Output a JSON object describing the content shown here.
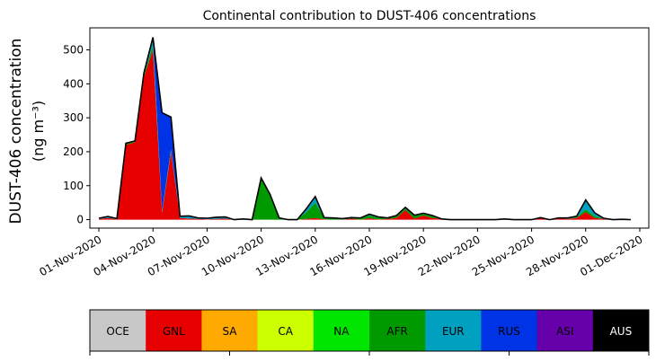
{
  "chart_data": {
    "type": "area",
    "title": "Continental contribution to DUST-406 concentrations",
    "ylabel_line1": "DUST-406 concentration",
    "ylabel_line2": "(ng m⁻³)",
    "ylim": [
      -25,
      565
    ],
    "yticks": [
      0,
      100,
      200,
      300,
      400,
      500
    ],
    "xlim": [
      -0.5,
      30.5
    ],
    "xticks": [
      {
        "day": 0,
        "label": "01-Nov-2020"
      },
      {
        "day": 3,
        "label": "04-Nov-2020"
      },
      {
        "day": 6,
        "label": "07-Nov-2020"
      },
      {
        "day": 9,
        "label": "10-Nov-2020"
      },
      {
        "day": 12,
        "label": "13-Nov-2020"
      },
      {
        "day": 15,
        "label": "16-Nov-2020"
      },
      {
        "day": 18,
        "label": "19-Nov-2020"
      },
      {
        "day": 21,
        "label": "22-Nov-2020"
      },
      {
        "day": 24,
        "label": "25-Nov-2020"
      },
      {
        "day": 27,
        "label": "28-Nov-2020"
      },
      {
        "day": 30,
        "label": "01-Dec-2020"
      }
    ],
    "x": [
      0,
      0.5,
      1,
      1.5,
      2,
      2.5,
      3,
      3.5,
      4,
      4.5,
      5,
      5.5,
      6,
      6.5,
      7,
      7.5,
      8,
      8.5,
      9,
      9.5,
      10,
      10.5,
      11,
      11.5,
      12,
      12.5,
      13,
      13.5,
      14,
      14.5,
      15,
      15.5,
      16,
      16.5,
      17,
      17.5,
      18,
      18.5,
      19,
      19.5,
      20,
      20.5,
      21,
      21.5,
      22,
      22.5,
      23,
      23.5,
      24,
      24.5,
      25,
      25.5,
      26,
      26.5,
      27,
      27.5,
      28,
      28.5,
      29,
      29.5
    ],
    "series": [
      {
        "name": "GNL",
        "color": "#e60000",
        "values": [
          2,
          5,
          1,
          220,
          228,
          420,
          500,
          20,
          200,
          5,
          3,
          2,
          1,
          2,
          3,
          0,
          0,
          0,
          0,
          0,
          0,
          0,
          0,
          2,
          5,
          1,
          0,
          0,
          3,
          0,
          4,
          1,
          2,
          5,
          28,
          3,
          12,
          5,
          2,
          0,
          0,
          0,
          0,
          0,
          0,
          0,
          0,
          0,
          0,
          4,
          0,
          3,
          2,
          5,
          22,
          5,
          2,
          0,
          1,
          0
        ]
      },
      {
        "name": "AFR",
        "color": "#009a00",
        "values": [
          0,
          0,
          0,
          5,
          4,
          8,
          12,
          2,
          5,
          0,
          0,
          0,
          0,
          0,
          0,
          0,
          0,
          0,
          120,
          70,
          5,
          0,
          0,
          20,
          45,
          5,
          5,
          3,
          3,
          5,
          8,
          5,
          2,
          5,
          5,
          8,
          5,
          5,
          0,
          0,
          0,
          0,
          0,
          0,
          0,
          0,
          0,
          0,
          0,
          0,
          0,
          0,
          0,
          2,
          8,
          5,
          0,
          0,
          0,
          0
        ]
      },
      {
        "name": "EUR",
        "color": "#00a0c0",
        "values": [
          2,
          4,
          2,
          0,
          0,
          5,
          20,
          3,
          2,
          5,
          8,
          3,
          3,
          5,
          5,
          0,
          2,
          0,
          3,
          4,
          0,
          0,
          0,
          10,
          18,
          0,
          0,
          0,
          0,
          0,
          4,
          2,
          1,
          2,
          3,
          2,
          2,
          2,
          0,
          0,
          0,
          0,
          0,
          0,
          0,
          2,
          0,
          0,
          0,
          2,
          0,
          2,
          3,
          3,
          28,
          10,
          2,
          0,
          0,
          0
        ]
      },
      {
        "name": "RUS",
        "color": "#0033e6",
        "values": [
          0,
          0,
          0,
          0,
          0,
          0,
          5,
          290,
          95,
          0,
          0,
          0,
          0,
          0,
          0,
          0,
          0,
          0,
          0,
          0,
          0,
          0,
          0,
          0,
          0,
          0,
          0,
          0,
          0,
          0,
          0,
          0,
          0,
          0,
          0,
          0,
          0,
          0,
          0,
          0,
          0,
          0,
          0,
          0,
          0,
          0,
          0,
          0,
          0,
          0,
          0,
          0,
          0,
          0,
          0,
          0,
          0,
          0,
          0,
          0
        ]
      }
    ],
    "legend": {
      "placement": "bottom",
      "entries": [
        {
          "label": "OCE",
          "color": "#c8c8c8",
          "text_color": "#000000"
        },
        {
          "label": "GNL",
          "color": "#e60000",
          "text_color": "#000000"
        },
        {
          "label": "SA",
          "color": "#ffaa00",
          "text_color": "#000000"
        },
        {
          "label": "CA",
          "color": "#ccff00",
          "text_color": "#000000"
        },
        {
          "label": "NA",
          "color": "#00e600",
          "text_color": "#000000"
        },
        {
          "label": "AFR",
          "color": "#009a00",
          "text_color": "#000000"
        },
        {
          "label": "EUR",
          "color": "#00a0c0",
          "text_color": "#000000"
        },
        {
          "label": "RUS",
          "color": "#0033e6",
          "text_color": "#000000"
        },
        {
          "label": "ASI",
          "color": "#6600aa",
          "text_color": "#000000"
        },
        {
          "label": "AUS",
          "color": "#000000",
          "text_color": "#ffffff"
        }
      ]
    }
  }
}
